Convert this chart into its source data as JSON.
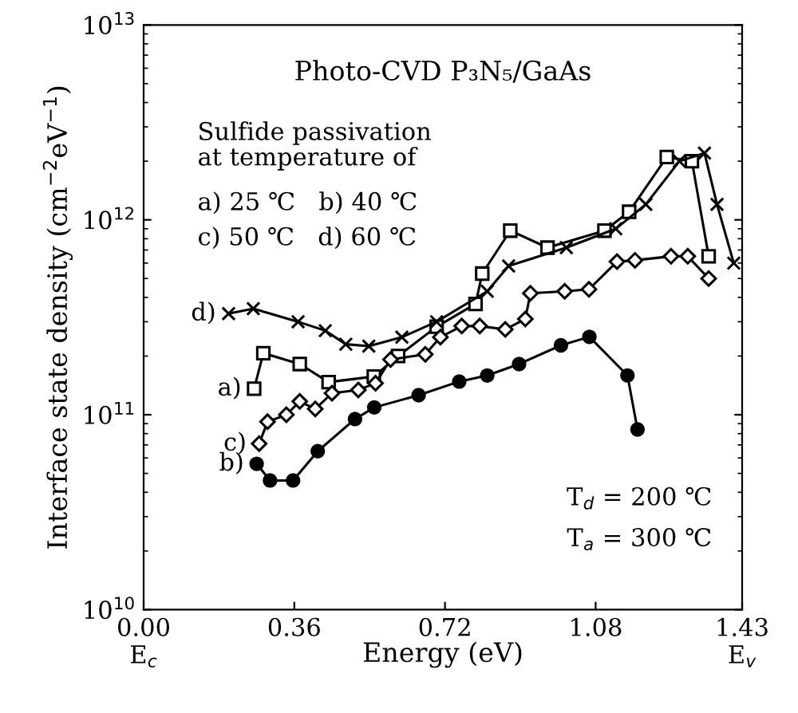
{
  "chart_data": {
    "type": "line",
    "title": "Photo-CVD P₃N₅/GaAs",
    "xlabel": "Energy (eV)",
    "ylabel": "Interface state density (cm$^{−2}$eV$^{−1}$)",
    "log": "y",
    "xlim": [
      0,
      1.43
    ],
    "ylim": [
      10000000000.0,
      10000000000000.0
    ],
    "xticks": [
      {
        "value": 0,
        "label": "0.00\nE$_{c}$"
      },
      {
        "value": 0.36,
        "label": "0.36"
      },
      {
        "value": 0.72,
        "label": "0.72"
      },
      {
        "value": 1.08,
        "label": "1.08"
      },
      {
        "value": 1.43,
        "label": "1.43\nE$_{v}$"
      }
    ],
    "yticks": [
      {
        "value": 10000000000.0,
        "label": "10$^{10}$"
      },
      {
        "value": 100000000000.0,
        "label": "10$^{11}$"
      },
      {
        "value": 1000000000000.0,
        "label": "10$^{12}$"
      },
      {
        "value": 10000000000000.0,
        "label": "10$^{13}$"
      }
    ],
    "grid": false,
    "legend": false,
    "annotations": [
      "Sulfide passivation\nat temperature of",
      "a) 25 ℃   b) 40 ℃",
      "c) 50 ℃   d) 60 ℃",
      "T$_{d}$ = 200 ℃",
      "T$_{a}$ = 300 ℃"
    ],
    "series": [
      {
        "name": "a)",
        "color": "#000000",
        "marker": "square",
        "x": [
          0.264,
          0.286,
          0.373,
          0.442,
          0.55,
          0.608,
          0.7,
          0.793,
          0.809,
          0.876,
          0.965,
          1.101,
          1.16,
          1.25,
          1.31,
          1.35
        ],
        "values": [
          136000000000.0,
          207000000000.0,
          182000000000.0,
          147000000000.0,
          157000000000.0,
          200000000000.0,
          283000000000.0,
          370000000000.0,
          530000000000.0,
          880000000000.0,
          720000000000.0,
          880000000000.0,
          1100000000000.0,
          2100000000000.0,
          2000000000000.0,
          650000000000.0
        ]
      },
      {
        "name": "b)",
        "color": "#000000",
        "marker": "circle",
        "x": [
          0.27,
          0.302,
          0.357,
          0.416,
          0.505,
          0.551,
          0.657,
          0.754,
          0.821,
          0.897,
          0.997,
          1.065,
          1.156,
          1.18
        ],
        "values": [
          56000000000.0,
          46000000000.0,
          46000000000.0,
          65000000000.0,
          95000000000.0,
          109000000000.0,
          126000000000.0,
          148000000000.0,
          159000000000.0,
          182000000000.0,
          227000000000.0,
          251000000000.0,
          159000000000.0,
          84000000000.0
        ]
      },
      {
        "name": "c)",
        "color": "#000000",
        "marker": "diamond",
        "x": [
          0.276,
          0.296,
          0.341,
          0.373,
          0.41,
          0.45,
          0.513,
          0.554,
          0.59,
          0.673,
          0.709,
          0.76,
          0.803,
          0.864,
          0.912,
          0.924,
          1.006,
          1.064,
          1.131,
          1.174,
          1.26,
          1.3,
          1.35
        ],
        "values": [
          71000000000.0,
          92000000000.0,
          100000000000.0,
          117000000000.0,
          107000000000.0,
          129000000000.0,
          134000000000.0,
          145000000000.0,
          192000000000.0,
          204000000000.0,
          250000000000.0,
          285000000000.0,
          285000000000.0,
          274000000000.0,
          310000000000.0,
          420000000000.0,
          430000000000.0,
          440000000000.0,
          610000000000.0,
          620000000000.0,
          650000000000.0,
          650000000000.0,
          500000000000.0
        ]
      },
      {
        "name": "d)",
        "color": "#000000",
        "marker": "cross",
        "x": [
          0.203,
          0.262,
          0.369,
          0.434,
          0.483,
          0.538,
          0.617,
          0.7,
          0.821,
          0.872,
          1.01,
          1.128,
          1.2,
          1.28,
          1.34,
          1.37,
          1.41
        ],
        "values": [
          330000000000.0,
          350000000000.0,
          300000000000.0,
          270000000000.0,
          230000000000.0,
          225000000000.0,
          250000000000.0,
          300000000000.0,
          430000000000.0,
          580000000000.0,
          720000000000.0,
          900000000000.0,
          1200000000000.0,
          2000000000000.0,
          2200000000000.0,
          1200000000000.0,
          600000000000.0
        ]
      }
    ]
  }
}
